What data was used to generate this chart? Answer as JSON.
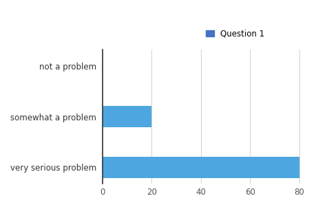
{
  "categories": [
    "not a problem",
    "somewhat a problem",
    "very serious problem"
  ],
  "values": [
    0,
    20,
    80
  ],
  "bar_color": "#4da6df",
  "legend_label": "Question 1",
  "legend_color": "#4472c4",
  "xlim": [
    0,
    87
  ],
  "xticks": [
    0,
    20,
    40,
    60,
    80
  ],
  "background_color": "#ffffff",
  "grid_color": "#d0d0d0",
  "bar_height": 0.42,
  "figsize": [
    4.75,
    3.01
  ],
  "dpi": 100
}
